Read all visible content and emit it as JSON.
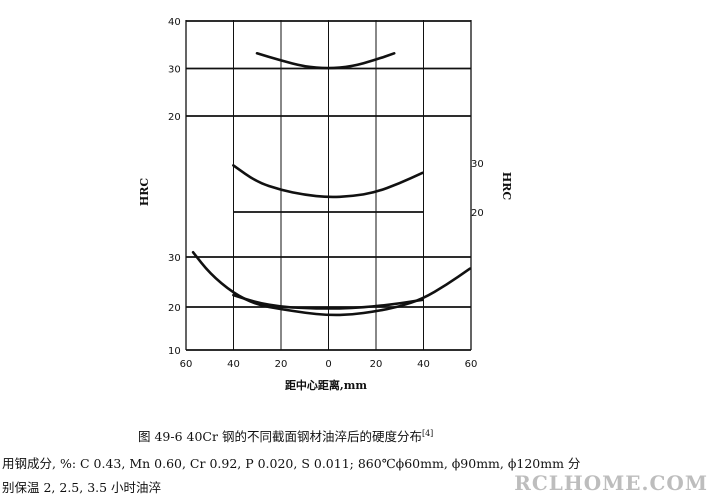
{
  "chart_data": {
    "type": "line",
    "x_ticks": [
      "60",
      "40",
      "20",
      "0",
      "20",
      "40",
      "60"
    ],
    "xlabel": "距中心距离,mm",
    "grid": true,
    "panels": [
      {
        "ylabel": "HRC",
        "ylabel_side": "left",
        "y_ticks": [
          "40",
          "30",
          "20"
        ],
        "series": [
          {
            "x": [
              -30,
              -20,
              -10,
              0,
              10,
              20,
              28
            ],
            "y": [
              33.2,
              31.7,
              30.4,
              30.0,
              30.4,
              31.8,
              33.2
            ]
          }
        ]
      },
      {
        "ylabel": "HRC",
        "ylabel_side": "right",
        "y_ticks": [
          "30",
          "20"
        ],
        "series": [
          {
            "x": [
              -40,
              -30,
              -20,
              -10,
              0,
              10,
              20,
              30,
              40
            ],
            "y": [
              29.5,
              26.1,
              24.5,
              23.5,
              23.0,
              23.2,
              24.0,
              25.8,
              28.0
            ]
          }
        ]
      },
      {
        "ylabel": "",
        "ylabel_side": "left",
        "y_ticks": [
          "30",
          "20",
          "10"
        ],
        "series": [
          {
            "x": [
              -57,
              -50,
              -40,
              -30,
              -20,
              -10,
              0,
              10,
              20,
              30,
              40,
              50,
              60
            ],
            "y": [
              31.0,
              26.5,
              22.2,
              19.7,
              18.8,
              18.0,
              17.5,
              17.6,
              18.3,
              19.3,
              21.0,
              24.0,
              27.5
            ]
          },
          {
            "x": [
              -40,
              -30,
              -20,
              -10,
              0,
              10,
              20,
              30,
              40
            ],
            "y": [
              21.8,
              20.2,
              19.3,
              19.0,
              18.9,
              19.0,
              19.4,
              20.0,
              20.8
            ]
          }
        ]
      }
    ]
  },
  "caption": {
    "figure_title": "图 49-6    40Cr 钢的不同截面钢材油淬后的硬度分布",
    "reference": "[4]",
    "line1": "用钢成分, %: C 0.43, Mn 0.60, Cr 0.92, P 0.020, S 0.011; 860℃ϕ60mm, ϕ90mm, ϕ120mm 分",
    "line2": "别保温 2, 2.5, 3.5 小时油淬"
  },
  "watermark": "RCLHOME.COM"
}
